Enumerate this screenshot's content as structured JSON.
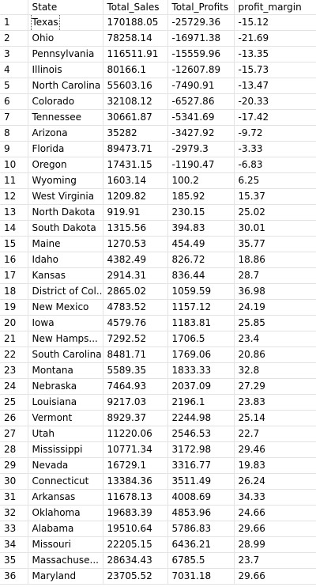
{
  "grid": {
    "columns": [
      "",
      "State",
      "Total_Sales",
      "Total_Profits",
      "profit_margin"
    ],
    "rows": [
      {
        "n": "1",
        "state": "Texas",
        "sales": "170188.05",
        "profits": "-25729.36",
        "margin": "-15.12"
      },
      {
        "n": "2",
        "state": "Ohio",
        "sales": "78258.14",
        "profits": "-16971.38",
        "margin": "-21.69"
      },
      {
        "n": "3",
        "state": "Pennsylvania",
        "sales": "116511.91",
        "profits": "-15559.96",
        "margin": "-13.35"
      },
      {
        "n": "4",
        "state": "Illinois",
        "sales": "80166.1",
        "profits": "-12607.89",
        "margin": "-15.73"
      },
      {
        "n": "5",
        "state": "North Carolina",
        "sales": "55603.16",
        "profits": "-7490.91",
        "margin": "-13.47"
      },
      {
        "n": "6",
        "state": "Colorado",
        "sales": "32108.12",
        "profits": "-6527.86",
        "margin": "-20.33"
      },
      {
        "n": "7",
        "state": "Tennessee",
        "sales": "30661.87",
        "profits": "-5341.69",
        "margin": "-17.42"
      },
      {
        "n": "8",
        "state": "Arizona",
        "sales": "35282",
        "profits": "-3427.92",
        "margin": "-9.72"
      },
      {
        "n": "9",
        "state": "Florida",
        "sales": "89473.71",
        "profits": "-2979.3",
        "margin": "-3.33"
      },
      {
        "n": "10",
        "state": "Oregon",
        "sales": "17431.15",
        "profits": "-1190.47",
        "margin": "-6.83"
      },
      {
        "n": "11",
        "state": "Wyoming",
        "sales": "1603.14",
        "profits": "100.2",
        "margin": "6.25"
      },
      {
        "n": "12",
        "state": "West Virginia",
        "sales": "1209.82",
        "profits": "185.92",
        "margin": "15.37"
      },
      {
        "n": "13",
        "state": "North Dakota",
        "sales": "919.91",
        "profits": "230.15",
        "margin": "25.02"
      },
      {
        "n": "14",
        "state": "South Dakota",
        "sales": "1315.56",
        "profits": "394.83",
        "margin": "30.01"
      },
      {
        "n": "15",
        "state": "Maine",
        "sales": "1270.53",
        "profits": "454.49",
        "margin": "35.77"
      },
      {
        "n": "16",
        "state": "Idaho",
        "sales": "4382.49",
        "profits": "826.72",
        "margin": "18.86"
      },
      {
        "n": "17",
        "state": "Kansas",
        "sales": "2914.31",
        "profits": "836.44",
        "margin": "28.7"
      },
      {
        "n": "18",
        "state": "District of Col...",
        "sales": "2865.02",
        "profits": "1059.59",
        "margin": "36.98"
      },
      {
        "n": "19",
        "state": "New Mexico",
        "sales": "4783.52",
        "profits": "1157.12",
        "margin": "24.19"
      },
      {
        "n": "20",
        "state": "Iowa",
        "sales": "4579.76",
        "profits": "1183.81",
        "margin": "25.85"
      },
      {
        "n": "21",
        "state": "New Hamps...",
        "sales": "7292.52",
        "profits": "1706.5",
        "margin": "23.4"
      },
      {
        "n": "22",
        "state": "South Carolina",
        "sales": "8481.71",
        "profits": "1769.06",
        "margin": "20.86"
      },
      {
        "n": "23",
        "state": "Montana",
        "sales": "5589.35",
        "profits": "1833.33",
        "margin": "32.8"
      },
      {
        "n": "24",
        "state": "Nebraska",
        "sales": "7464.93",
        "profits": "2037.09",
        "margin": "27.29"
      },
      {
        "n": "25",
        "state": "Louisiana",
        "sales": "9217.03",
        "profits": "2196.1",
        "margin": "23.83"
      },
      {
        "n": "26",
        "state": "Vermont",
        "sales": "8929.37",
        "profits": "2244.98",
        "margin": "25.14"
      },
      {
        "n": "27",
        "state": "Utah",
        "sales": "11220.06",
        "profits": "2546.53",
        "margin": "22.7"
      },
      {
        "n": "28",
        "state": "Mississippi",
        "sales": "10771.34",
        "profits": "3172.98",
        "margin": "29.46"
      },
      {
        "n": "29",
        "state": "Nevada",
        "sales": "16729.1",
        "profits": "3316.77",
        "margin": "19.83"
      },
      {
        "n": "30",
        "state": "Connecticut",
        "sales": "13384.36",
        "profits": "3511.49",
        "margin": "26.24"
      },
      {
        "n": "31",
        "state": "Arkansas",
        "sales": "11678.13",
        "profits": "4008.69",
        "margin": "34.33"
      },
      {
        "n": "32",
        "state": "Oklahoma",
        "sales": "19683.39",
        "profits": "4853.96",
        "margin": "24.66"
      },
      {
        "n": "33",
        "state": "Alabama",
        "sales": "19510.64",
        "profits": "5786.83",
        "margin": "29.66"
      },
      {
        "n": "34",
        "state": "Missouri",
        "sales": "22205.15",
        "profits": "6436.21",
        "margin": "28.99"
      },
      {
        "n": "35",
        "state": "Massachuse...",
        "sales": "28634.43",
        "profits": "6785.5",
        "margin": "23.7"
      },
      {
        "n": "36",
        "state": "Maryland",
        "sales": "23705.52",
        "profits": "7031.18",
        "margin": "29.66"
      }
    ]
  }
}
